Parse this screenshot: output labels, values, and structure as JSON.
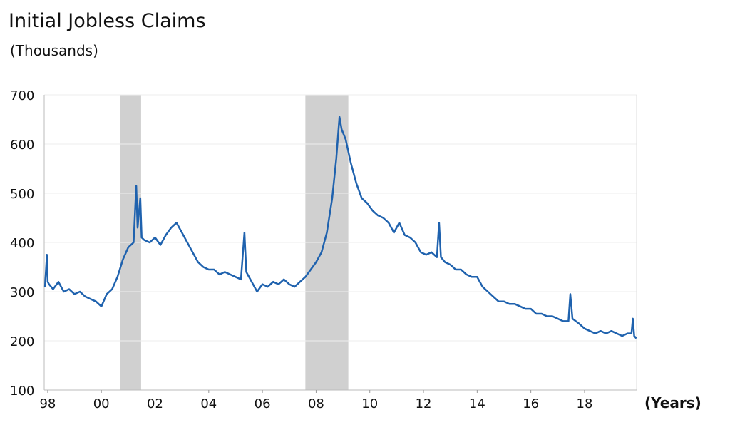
{
  "chart_data": {
    "type": "line",
    "title": "Initial Jobless Claims",
    "subtitle": "(Thousands)",
    "x_label": "(Years)",
    "xlim": [
      1997.87,
      2019.94
    ],
    "ylim": [
      100,
      700
    ],
    "yticks": [
      100,
      200,
      300,
      400,
      500,
      600,
      700
    ],
    "xticks": [
      {
        "value": 1998,
        "label": "98"
      },
      {
        "value": 2000,
        "label": "00"
      },
      {
        "value": 2002,
        "label": "02"
      },
      {
        "value": 2004,
        "label": "04"
      },
      {
        "value": 2006,
        "label": "06"
      },
      {
        "value": 2008,
        "label": "08"
      },
      {
        "value": 2010,
        "label": "10"
      },
      {
        "value": 2012,
        "label": "12"
      },
      {
        "value": 2014,
        "label": "14"
      },
      {
        "value": 2016,
        "label": "16"
      },
      {
        "value": 2018,
        "label": "18"
      }
    ],
    "grid": true,
    "recessions": [
      [
        2000.7,
        2001.48
      ],
      [
        2007.6,
        2009.2
      ]
    ],
    "series": [
      {
        "name": "Initial Jobless Claims",
        "color": "#1f62ae",
        "x": [
          1997.9,
          1997.97,
          1998.0,
          1998.05,
          1998.2,
          1998.4,
          1998.5,
          1998.6,
          1998.8,
          1999.0,
          1999.2,
          1999.4,
          1999.6,
          1999.8,
          2000.0,
          2000.2,
          2000.4,
          2000.6,
          2000.8,
          2001.0,
          2001.2,
          2001.3,
          2001.35,
          2001.45,
          2001.5,
          2001.6,
          2001.8,
          2002.0,
          2002.2,
          2002.4,
          2002.6,
          2002.8,
          2003.0,
          2003.2,
          2003.4,
          2003.6,
          2003.8,
          2004.0,
          2004.2,
          2004.4,
          2004.6,
          2004.8,
          2005.0,
          2005.2,
          2005.33,
          2005.4,
          2005.6,
          2005.8,
          2006.0,
          2006.2,
          2006.4,
          2006.6,
          2006.8,
          2007.0,
          2007.2,
          2007.4,
          2007.6,
          2007.8,
          2008.0,
          2008.2,
          2008.4,
          2008.6,
          2008.75,
          2008.87,
          2008.95,
          2009.1,
          2009.3,
          2009.5,
          2009.7,
          2009.9,
          2010.1,
          2010.3,
          2010.5,
          2010.7,
          2010.9,
          2011.1,
          2011.3,
          2011.5,
          2011.7,
          2011.9,
          2012.1,
          2012.3,
          2012.5,
          2012.58,
          2012.65,
          2012.8,
          2013.0,
          2013.2,
          2013.4,
          2013.6,
          2013.8,
          2014.0,
          2014.2,
          2014.4,
          2014.6,
          2014.8,
          2015.0,
          2015.2,
          2015.4,
          2015.6,
          2015.8,
          2016.0,
          2016.2,
          2016.4,
          2016.6,
          2016.8,
          2017.0,
          2017.2,
          2017.4,
          2017.47,
          2017.55,
          2017.8,
          2018.0,
          2018.2,
          2018.4,
          2018.6,
          2018.8,
          2019.0,
          2019.2,
          2019.4,
          2019.6,
          2019.75,
          2019.8,
          2019.85,
          2019.93
        ],
        "values": [
          310,
          375,
          320,
          315,
          305,
          320,
          310,
          300,
          305,
          295,
          300,
          290,
          285,
          280,
          270,
          295,
          305,
          330,
          365,
          390,
          400,
          515,
          430,
          490,
          410,
          405,
          400,
          410,
          395,
          415,
          430,
          440,
          420,
          400,
          380,
          360,
          350,
          345,
          345,
          335,
          340,
          335,
          330,
          325,
          420,
          340,
          320,
          300,
          315,
          310,
          320,
          315,
          325,
          315,
          310,
          320,
          330,
          345,
          360,
          380,
          420,
          490,
          570,
          655,
          630,
          610,
          560,
          520,
          490,
          480,
          465,
          455,
          450,
          440,
          420,
          440,
          415,
          410,
          400,
          380,
          375,
          380,
          370,
          440,
          370,
          360,
          355,
          345,
          345,
          335,
          330,
          330,
          310,
          300,
          290,
          280,
          280,
          275,
          275,
          270,
          265,
          265,
          255,
          255,
          250,
          250,
          245,
          240,
          240,
          295,
          245,
          235,
          225,
          220,
          215,
          220,
          215,
          220,
          215,
          210,
          215,
          215,
          245,
          210,
          205
        ]
      }
    ]
  }
}
